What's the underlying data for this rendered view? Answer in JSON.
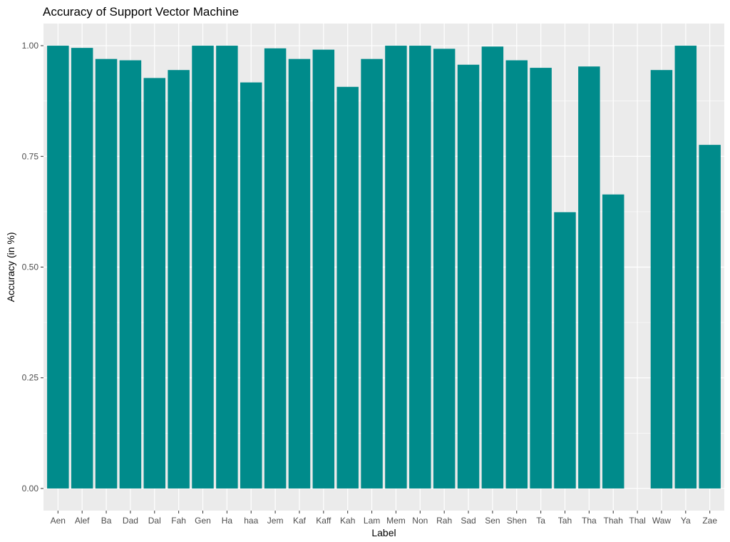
{
  "chart_data": {
    "type": "bar",
    "title": "Accuracy of Support Vector Machine",
    "xlabel": "Label",
    "ylabel": "Accuracy (in %)",
    "ylim": [
      -0.05,
      1.05
    ],
    "yticks": [
      0.0,
      0.25,
      0.5,
      0.75,
      1.0
    ],
    "ytick_labels": [
      "0.00",
      "0.25",
      "0.50",
      "0.75",
      "1.00"
    ],
    "grid": true,
    "bar_color": "#008B8B",
    "panel_color": "#EBEBEB",
    "grid_color": "#FFFFFF",
    "categories": [
      "Aen",
      "Alef",
      "Ba",
      "Dad",
      "Dal",
      "Fah",
      "Gen",
      "Ha",
      "haa",
      "Jem",
      "Kaf",
      "Kaff",
      "Kah",
      "Lam",
      "Mem",
      "Non",
      "Rah",
      "Sad",
      "Sen",
      "Shen",
      "Ta",
      "Tah",
      "Tha",
      "Thah",
      "Thal",
      "Waw",
      "Ya",
      "Zae"
    ],
    "values": [
      1.0,
      0.995,
      0.97,
      0.967,
      0.927,
      0.945,
      1.0,
      1.0,
      0.917,
      0.994,
      0.97,
      0.991,
      0.907,
      0.97,
      1.0,
      1.0,
      0.993,
      0.957,
      0.998,
      0.967,
      0.95,
      0.624,
      0.953,
      0.664,
      0.0,
      0.945,
      1.0,
      0.776
    ]
  }
}
